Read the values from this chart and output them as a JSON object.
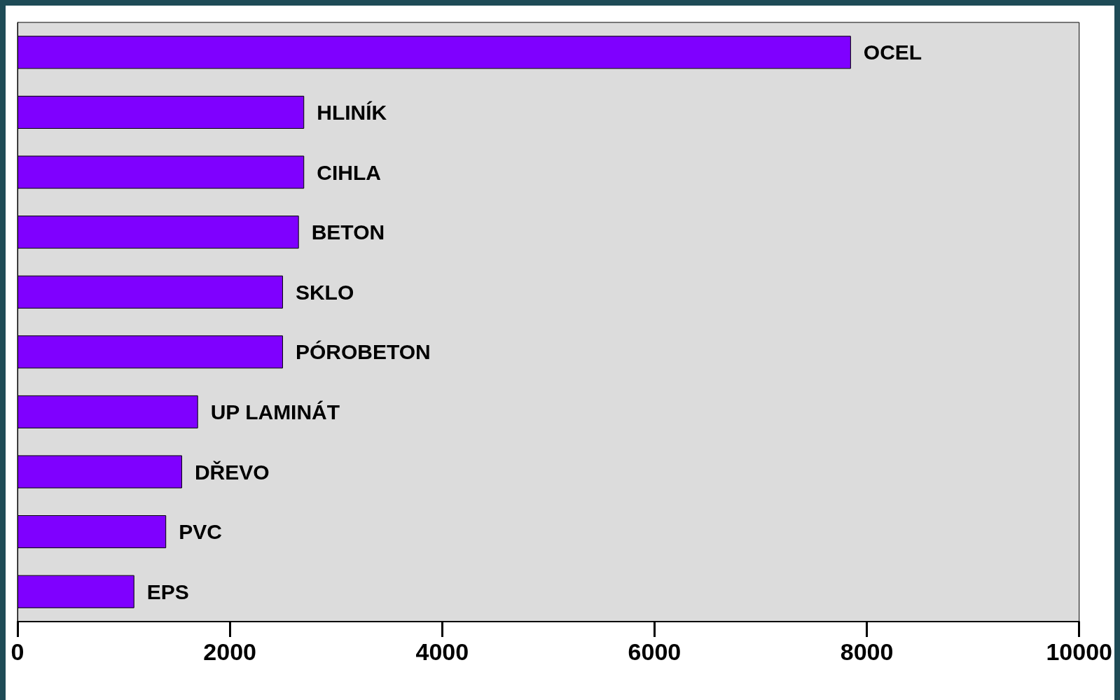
{
  "chart_data": {
    "type": "bar",
    "orientation": "horizontal",
    "categories": [
      "OCEL",
      "HLINÍK",
      "CIHLA",
      "BETON",
      "SKLO",
      "PÓROBETON",
      "UP LAMINÁT",
      "DŘEVO",
      "PVC",
      "EPS"
    ],
    "values": [
      7850,
      2700,
      2700,
      2650,
      2500,
      2500,
      1700,
      1550,
      1400,
      1100
    ],
    "color": "#7f00ff",
    "xlim": [
      0,
      10000
    ],
    "xticks": [
      0,
      2000,
      4000,
      6000,
      8000,
      10000
    ],
    "grid": false
  }
}
